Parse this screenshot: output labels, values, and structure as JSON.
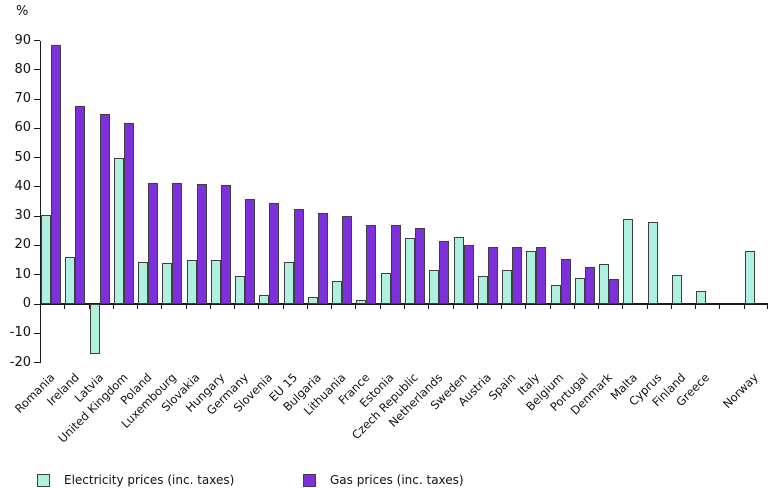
{
  "chart_data": {
    "type": "bar",
    "ylabel": "%",
    "ylim": [
      -20,
      90
    ],
    "ytick_step": 10,
    "yticks": [
      90,
      80,
      70,
      60,
      50,
      40,
      30,
      20,
      10,
      0,
      -10,
      -20
    ],
    "grid": false,
    "legend_position": "bottom",
    "categories": [
      "Romania",
      "Ireland",
      "Latvia",
      "United Kingdom",
      "Poland",
      "Luxembourg",
      "Slovakia",
      "Hungary",
      "Germany",
      "Slovenia",
      "EU 15",
      "Bulgaria",
      "Lithuania",
      "France",
      "Estonia",
      "Czech Republic",
      "Netherlands",
      "Sweden",
      "Austria",
      "Spain",
      "Italy",
      "Belgium",
      "Portugal",
      "Denmark",
      "Malta",
      "Cyprus",
      "Finland",
      "Greece",
      "Norway"
    ],
    "gap_before_category": "Norway",
    "series": [
      {
        "name": "Electricity prices (inc. taxes)",
        "key": "electricity",
        "color": "#b0f0e0",
        "values": [
          30.5,
          16,
          -17,
          50,
          14.5,
          14,
          15,
          15,
          9.5,
          3,
          14.5,
          2.5,
          8,
          1.5,
          10.5,
          22.5,
          11.5,
          23,
          9.5,
          11.5,
          18,
          6.5,
          9,
          13.5,
          29,
          28,
          10,
          4.5,
          18
        ]
      },
      {
        "name": "Gas prices (inc. taxes)",
        "key": "gas",
        "color": "#7d30dc",
        "values": [
          88.5,
          67.5,
          65,
          62,
          41.5,
          41.5,
          41,
          40.5,
          36,
          34.5,
          32.5,
          31,
          30,
          27,
          27,
          26,
          21.5,
          20,
          19.5,
          19.5,
          19.5,
          15.5,
          12.5,
          8.5,
          null,
          null,
          null,
          null,
          null
        ]
      }
    ],
    "colors": {
      "electricity": "#b0f0e0",
      "gas": "#7d30dc",
      "bar_border": "#404040",
      "axis": "#1a1a1a"
    }
  }
}
